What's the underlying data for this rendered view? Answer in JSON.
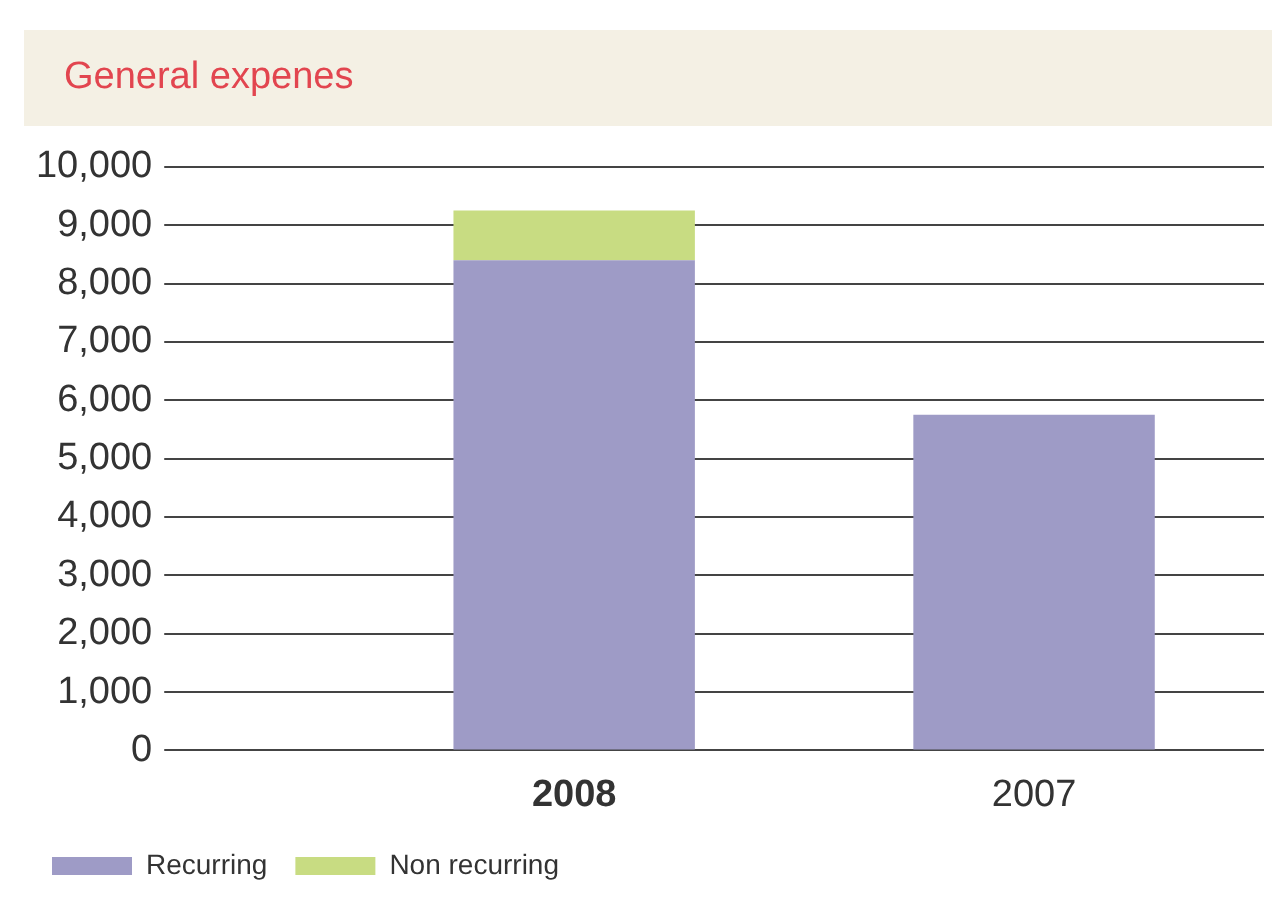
{
  "chart_data": {
    "type": "bar",
    "title": "General expenes",
    "categories": [
      "2008",
      "2007"
    ],
    "stacked": true,
    "series": [
      {
        "name": "Recurring",
        "color": "#9e9bc6",
        "values": [
          8400,
          5750
        ]
      },
      {
        "name": "Non recurring",
        "color": "#c8dc82",
        "values": [
          850,
          null
        ]
      }
    ],
    "ylim": [
      0,
      10000
    ],
    "yticks": [
      {
        "value": 0,
        "label": "0"
      },
      {
        "value": 1000,
        "label": "1,000"
      },
      {
        "value": 2000,
        "label": "2,000"
      },
      {
        "value": 3000,
        "label": "3,000"
      },
      {
        "value": 4000,
        "label": "4,000"
      },
      {
        "value": 5000,
        "label": "5,000"
      },
      {
        "value": 6000,
        "label": "6,000"
      },
      {
        "value": 7000,
        "label": "7,000"
      },
      {
        "value": 8000,
        "label": "8,000"
      },
      {
        "value": 9000,
        "label": "9,000"
      },
      {
        "value": 10000,
        "label": "10,000"
      }
    ],
    "grid": "y",
    "legend": "bottom left"
  }
}
